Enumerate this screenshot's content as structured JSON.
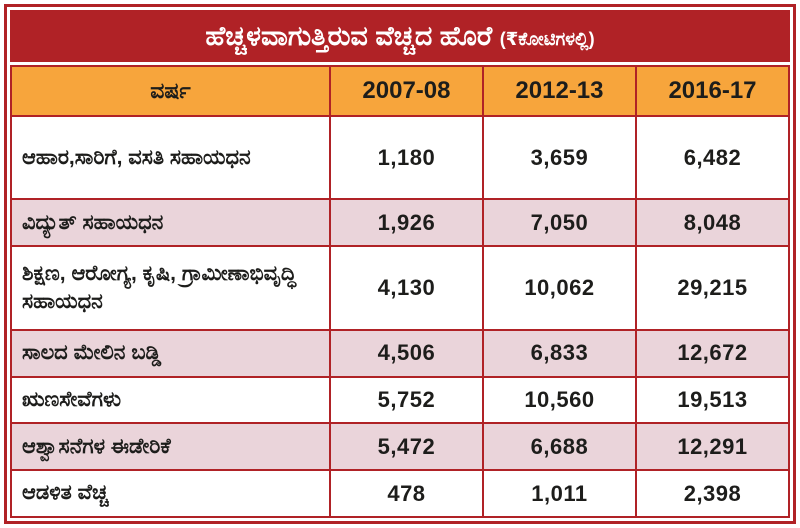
{
  "header": {
    "title": "ಹೆಚ್ಚಳವಾಗುತ್ತಿರುವ ವೆಚ್ಚದ ಹೊರೆ",
    "subtitle": "(₹ಕೋಟಿಗಳಲ್ಲಿ)"
  },
  "chart_data": {
    "type": "table",
    "columns": [
      "ವರ್ಷ",
      "2007-08",
      "2012-13",
      "2016-17"
    ],
    "rows": [
      {
        "label": "ಆಹಾರ,ಸಾರಿಗೆ, ವಸತಿ ಸಹಾಯಧನ",
        "values": [
          "1,180",
          "3,659",
          "6,482"
        ]
      },
      {
        "label": "ವಿದ್ಯುತ್ ಸಹಾಯಧನ",
        "values": [
          "1,926",
          "7,050",
          "8,048"
        ]
      },
      {
        "label": "ಶಿಕ್ಷಣ, ಆರೋಗ್ಯ, ಕೃಷಿ, ಗ್ರಾಮೀಣಾಭಿವೃದ್ಧಿ ಸಹಾಯಧನ",
        "values": [
          "4,130",
          "10,062",
          "29,215"
        ]
      },
      {
        "label": "ಸಾಲದ ಮೇಲಿನ ಬಡ್ಡಿ",
        "values": [
          "4,506",
          "6,833",
          "12,672"
        ]
      },
      {
        "label": "ಋಣಸೇವೆಗಳು",
        "values": [
          "5,752",
          "10,560",
          "19,513"
        ]
      },
      {
        "label": "ಆಶ್ವಾಸನೆಗಳ ಈಡೇರಿಕೆ",
        "values": [
          "5,472",
          "6,688",
          "12,291"
        ]
      },
      {
        "label": "ಆಡಳಿತ ವೆಚ್ಚ",
        "values": [
          "478",
          "1,011",
          "2,398"
        ]
      }
    ]
  },
  "colors": {
    "frame_red": "#b02226",
    "header_orange": "#f7a53c",
    "row_pink": "#ead4da",
    "row_white": "#ffffff",
    "title_text": "#ffffff",
    "body_text": "#1d1d1b"
  }
}
